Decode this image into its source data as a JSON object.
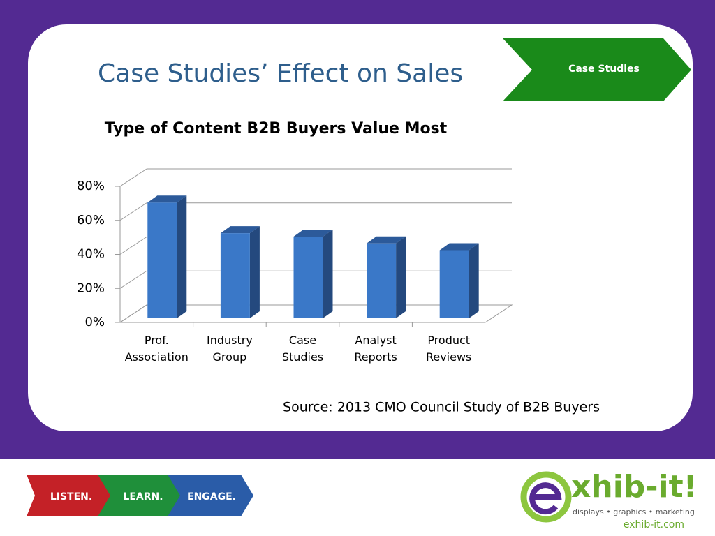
{
  "slide": {
    "title": "Case Studies’ Effect on Sales",
    "tag": "Case Studies",
    "source": "Source: 2013 CMO Council Study of B2B Buyers"
  },
  "footer": {
    "steps": [
      "LISTEN.",
      "LEARN.",
      "ENGAGE."
    ],
    "logo": "xhib-it!",
    "tagline": "displays • graphics • marketing",
    "url": "exhib-it.com"
  },
  "chart_data": {
    "type": "bar",
    "title": "Type of Content B2B Buyers Value Most",
    "categories": [
      "Prof. Association",
      "Industry Group",
      "Case Studies",
      "Analyst Reports",
      "Product Reviews"
    ],
    "values": [
      68,
      50,
      48,
      44,
      40
    ],
    "color": "#3a78c8",
    "ylim": [
      0,
      80
    ],
    "yticks": [
      {
        "value": 0,
        "label": "0%"
      },
      {
        "value": 20,
        "label": "20%"
      },
      {
        "value": 40,
        "label": "40%"
      },
      {
        "value": 60,
        "label": "60%"
      },
      {
        "value": 80,
        "label": "80%"
      }
    ],
    "grid": true
  }
}
